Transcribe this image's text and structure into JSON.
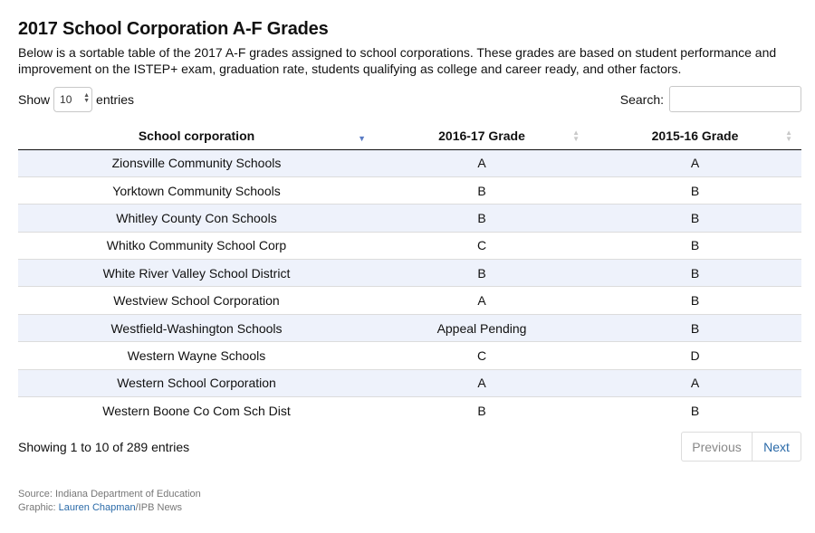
{
  "header": {
    "title": "2017 School Corporation A-F Grades",
    "description": "Below is a sortable table of the 2017 A-F grades assigned to school corporations. These grades are based on student performance and improvement on the ISTEP+ exam, graduation rate, students qualifying as college and career ready, and other factors."
  },
  "controls": {
    "show_label": "Show",
    "entries_value": "10",
    "entries_label": "entries",
    "search_label": "Search:",
    "search_value": ""
  },
  "table": {
    "columns": [
      "School corporation",
      "2016-17 Grade",
      "2015-16 Grade"
    ],
    "rows": [
      [
        "Zionsville Community Schools",
        "A",
        "A"
      ],
      [
        "Yorktown Community Schools",
        "B",
        "B"
      ],
      [
        "Whitley County Con Schools",
        "B",
        "B"
      ],
      [
        "Whitko Community School Corp",
        "C",
        "B"
      ],
      [
        "White River Valley School District",
        "B",
        "B"
      ],
      [
        "Westview School Corporation",
        "A",
        "B"
      ],
      [
        "Westfield-Washington Schools",
        "Appeal Pending",
        "B"
      ],
      [
        "Western Wayne Schools",
        "C",
        "D"
      ],
      [
        "Western School Corporation",
        "A",
        "A"
      ],
      [
        "Western Boone Co Com Sch Dist",
        "B",
        "B"
      ]
    ]
  },
  "footer": {
    "info": "Showing 1 to 10 of 289 entries",
    "previous_label": "Previous",
    "next_label": "Next",
    "source": "Source: Indiana Department of Education",
    "graphic_prefix": "Graphic: ",
    "graphic_author": "Lauren Chapman",
    "graphic_suffix": "/IPB News"
  },
  "colors": {
    "row_stripe": "#eef2fb",
    "link": "#2a6aa8",
    "sort_active": "#5a7bc4"
  }
}
